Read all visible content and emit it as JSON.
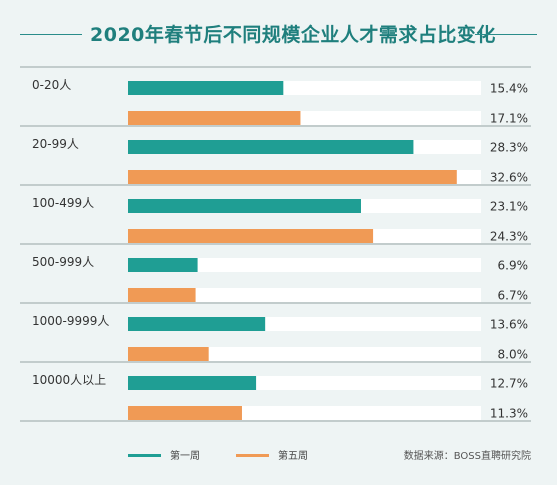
{
  "title": "2020年春节后不同规模企业人才需求占比变化",
  "colors": {
    "series_week1": "#1f9e94",
    "series_week5": "#f09a55",
    "track": "#ffffff",
    "separator": "#7a8a8a"
  },
  "chart_data": {
    "type": "bar",
    "orientation": "horizontal",
    "categories": [
      "0-20人",
      "20-99人",
      "100-499人",
      "500-999人",
      "1000-9999人",
      "10000人以上"
    ],
    "series": [
      {
        "name": "第一周",
        "values": [
          15.4,
          28.3,
          23.1,
          6.9,
          13.6,
          12.7
        ]
      },
      {
        "name": "第五周",
        "values": [
          17.1,
          32.6,
          24.3,
          6.7,
          8.0,
          11.3
        ]
      }
    ],
    "value_labels": [
      [
        "15.4%",
        "28.3%",
        "23.1%",
        "6.9%",
        "13.6%",
        "12.7%"
      ],
      [
        "17.1%",
        "32.6%",
        "24.3%",
        "6.7%",
        "8.0%",
        "11.3%"
      ]
    ],
    "xlim": [
      0,
      35
    ],
    "grid": false,
    "legend_position": "bottom-left"
  },
  "legend": {
    "week1": "第一周",
    "week5": "第五周"
  },
  "source": "数据来源：BOSS直聘研究院"
}
